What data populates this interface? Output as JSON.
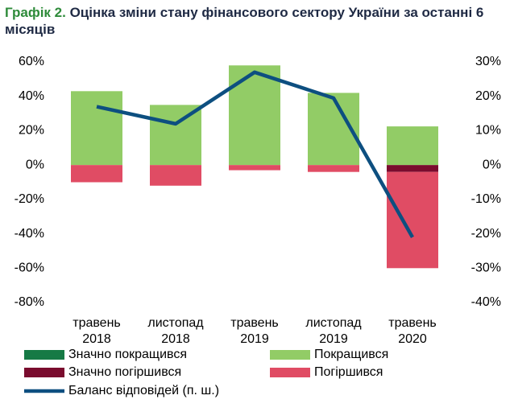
{
  "chart_data": {
    "type": "bar",
    "label": "Графік 2.",
    "title": "Оцінка зміни стану фінансового сектору України за останні 6 місяців",
    "categories": [
      "травень 2018",
      "листопад 2018",
      "травень 2019",
      "листопад 2019",
      "травень 2020"
    ],
    "series": [
      {
        "name": "Значно покращився",
        "color": "#167a45",
        "sign": "positive",
        "values": [
          0,
          0,
          0,
          0,
          0
        ]
      },
      {
        "name": "Покращився",
        "color": "#92cc66",
        "sign": "positive",
        "values": [
          43,
          35,
          58,
          42,
          22.5
        ]
      },
      {
        "name": "Значно погіршився",
        "color": "#7a0c2e",
        "sign": "negative",
        "values": [
          0,
          0,
          0,
          0,
          -4
        ]
      },
      {
        "name": "Погіршився",
        "color": "#e04c64",
        "sign": "negative",
        "values": [
          -10,
          -12,
          -3,
          -4,
          -56
        ]
      },
      {
        "name": "Баланс відповідей (п. ш.)",
        "color": "#0d4f80",
        "type": "line",
        "axis": "y2",
        "values": [
          17,
          12,
          27,
          19.5,
          -21
        ]
      }
    ],
    "ylim": [
      -80,
      60
    ],
    "yticks": [
      {
        "value": -80,
        "label": "-80%"
      },
      {
        "value": -60,
        "label": "-60%"
      },
      {
        "value": -40,
        "label": "-40%"
      },
      {
        "value": -20,
        "label": "-20%"
      },
      {
        "value": 0,
        "label": "0%"
      },
      {
        "value": 20,
        "label": "20%"
      },
      {
        "value": 40,
        "label": "40%"
      },
      {
        "value": 60,
        "label": "60%"
      }
    ],
    "y2lim": [
      -40,
      30
    ],
    "y2ticks": [
      {
        "value": -40,
        "label": "-40%"
      },
      {
        "value": -30,
        "label": "-30%"
      },
      {
        "value": -20,
        "label": "-20%"
      },
      {
        "value": -10,
        "label": "-10%"
      },
      {
        "value": 0,
        "label": "0%"
      },
      {
        "value": 10,
        "label": "10%"
      },
      {
        "value": 20,
        "label": "20%"
      },
      {
        "value": 30,
        "label": "30%"
      }
    ],
    "grid": false
  }
}
